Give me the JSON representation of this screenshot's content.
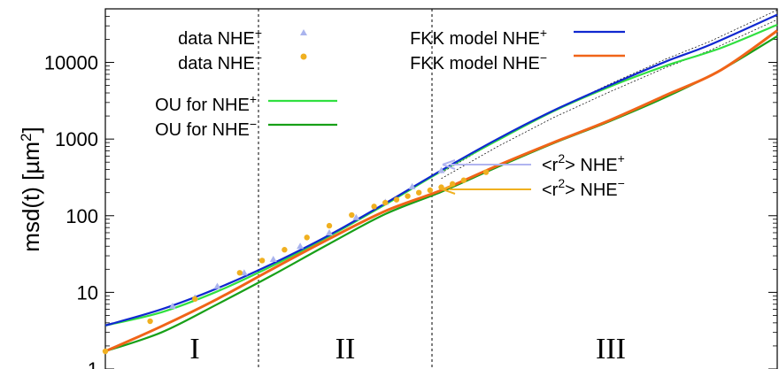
{
  "chart_data": {
    "type": "line",
    "x_scale": "log",
    "y_scale": "log",
    "ylabel": "msd(t) [µm",
    "ylabel_sup": "2",
    "ylabel_tail": "]",
    "ylim": [
      1,
      50000
    ],
    "y_ticks": [
      {
        "value": 1,
        "label": "1"
      },
      {
        "value": 10,
        "label": "10"
      },
      {
        "value": 100,
        "label": "100"
      },
      {
        "value": 1000,
        "label": "1000"
      },
      {
        "value": 10000,
        "label": "10000"
      }
    ],
    "x_ticks_labeled": false,
    "regions": [
      {
        "label": "I"
      },
      {
        "label": "II"
      },
      {
        "label": "III"
      }
    ],
    "series": [
      {
        "name": "data NHE",
        "sign": "+",
        "kind": "markers",
        "marker": "triangle",
        "color": "#aab4ee",
        "x": [
          0.3,
          0.4,
          0.5,
          0.62,
          0.75,
          0.87,
          1.0,
          1.12,
          1.25,
          1.37,
          1.5
        ],
        "values": [
          6.6,
          8.5,
          12,
          18,
          27,
          40,
          60,
          95,
          150,
          240,
          390
        ]
      },
      {
        "name": "data NHE",
        "sign": "−",
        "kind": "markers",
        "marker": "circle",
        "color": "#f0b020",
        "x": [
          0.0,
          0.2,
          0.4,
          0.6,
          0.7,
          0.8,
          0.9,
          1.0,
          1.1,
          1.2,
          1.25,
          1.3,
          1.35,
          1.4,
          1.45,
          1.5,
          1.55,
          1.6,
          1.7
        ],
        "values": [
          1.7,
          4.2,
          8.2,
          18,
          26,
          36,
          52,
          74,
          102,
          132,
          148,
          162,
          180,
          200,
          215,
          235,
          260,
          290,
          370
        ]
      },
      {
        "name": "FKK model NHE",
        "sign": "+",
        "kind": "line",
        "color": "#1028d0",
        "x": [
          0.0,
          0.25,
          0.5,
          0.75,
          1.0,
          1.25,
          1.5,
          1.75,
          2.0,
          2.25,
          2.5,
          2.7,
          3.0
        ],
        "values": [
          3.7,
          6.0,
          11.3,
          24,
          56,
          145,
          390,
          1000,
          2350,
          5000,
          10200,
          17000,
          42000
        ]
      },
      {
        "name": "FKK model NHE",
        "sign": "−",
        "kind": "line",
        "color": "#f06418",
        "x": [
          0.0,
          0.25,
          0.5,
          0.75,
          1.0,
          1.25,
          1.5,
          1.75,
          2.0,
          2.25,
          2.5,
          2.75,
          3.0
        ],
        "values": [
          1.7,
          3.6,
          8.2,
          20.5,
          50,
          115,
          215,
          450,
          900,
          1750,
          3700,
          8000,
          26000
        ]
      },
      {
        "name": "OU for NHE",
        "sign": "+",
        "kind": "line",
        "color": "#30e040",
        "x": [
          0.0,
          0.25,
          0.5,
          0.75,
          1.0,
          1.25,
          1.5,
          1.75,
          2.0,
          2.25,
          2.5,
          2.75,
          3.0
        ],
        "values": [
          3.7,
          5.5,
          10.3,
          22.5,
          54,
          140,
          380,
          960,
          2300,
          4800,
          9000,
          15500,
          31000
        ]
      },
      {
        "name": "OU for NHE",
        "sign": "−",
        "kind": "line",
        "color": "#18a018",
        "x": [
          0.0,
          0.25,
          0.5,
          0.75,
          1.0,
          1.25,
          1.5,
          1.75,
          2.0,
          2.25,
          2.5,
          2.75,
          3.0
        ],
        "values": [
          1.7,
          3.0,
          7.0,
          17,
          43,
          105,
          205,
          430,
          880,
          1700,
          3500,
          8000,
          22000
        ]
      }
    ],
    "annotations": [
      {
        "text": "<r",
        "sup": "2",
        "text2": "> NHE",
        "sign": "+",
        "arrow_color": "#b0b4f0",
        "y": 400
      },
      {
        "text": "<r",
        "sup": "2",
        "text2": "> NHE",
        "sign": "−",
        "arrow_color": "#f0b020",
        "y": 215
      }
    ]
  }
}
